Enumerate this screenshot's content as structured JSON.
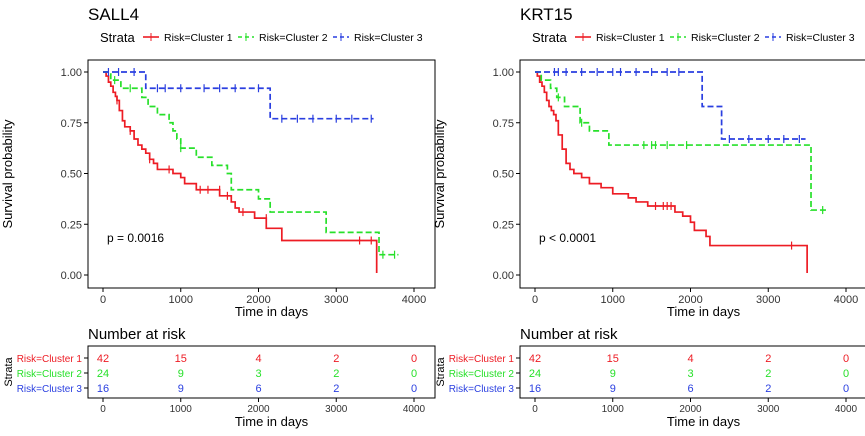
{
  "colors": {
    "cluster1": "#ed1c24",
    "cluster2": "#27e02a",
    "cluster3": "#2a3fe0"
  },
  "chart_data": [
    {
      "type": "line",
      "subtype": "kaplan-meier",
      "title": "SALL4",
      "legend_title": "Strata",
      "legend_entries": [
        "Risk=Cluster 1",
        "Risk=Cluster 2",
        "Risk=Cluster 3"
      ],
      "xlabel": "Time in days",
      "ylabel": "Survival probability",
      "xlim": [
        0,
        4000
      ],
      "ylim": [
        0,
        1
      ],
      "x_ticks": [
        0,
        1000,
        2000,
        3000,
        4000
      ],
      "x_tick_labels": [
        "0",
        "1000",
        "2000",
        "3000",
        "4000"
      ],
      "y_ticks": [
        0,
        0.25,
        0.5,
        0.75,
        1
      ],
      "y_tick_labels": [
        "0.00",
        "0.25",
        "0.50",
        "0.75",
        "1.00"
      ],
      "pvalue": "p = 0.0016",
      "series": [
        {
          "name": "Risk=Cluster 1",
          "color_key": "cluster1",
          "dash": "solid",
          "steps": [
            [
              0,
              1
            ],
            [
              40,
              0.98
            ],
            [
              70,
              0.95
            ],
            [
              100,
              0.93
            ],
            [
              130,
              0.9
            ],
            [
              160,
              0.88
            ],
            [
              180,
              0.86
            ],
            [
              210,
              0.81
            ],
            [
              250,
              0.76
            ],
            [
              280,
              0.73
            ],
            [
              350,
              0.71
            ],
            [
              400,
              0.67
            ],
            [
              450,
              0.64
            ],
            [
              500,
              0.62
            ],
            [
              550,
              0.6
            ],
            [
              600,
              0.57
            ],
            [
              650,
              0.55
            ],
            [
              700,
              0.52
            ],
            [
              900,
              0.5
            ],
            [
              1000,
              0.48
            ],
            [
              1050,
              0.45
            ],
            [
              1200,
              0.42
            ],
            [
              1500,
              0.39
            ],
            [
              1650,
              0.36
            ],
            [
              1700,
              0.33
            ],
            [
              1750,
              0.31
            ],
            [
              1950,
              0.28
            ],
            [
              2100,
              0.23
            ],
            [
              2300,
              0.17
            ],
            [
              3520,
              0.01
            ]
          ],
          "end": 3520,
          "censors": [
            [
              180,
              0.86
            ],
            [
              350,
              0.71
            ],
            [
              600,
              0.57
            ],
            [
              850,
              0.52
            ],
            [
              1250,
              0.42
            ],
            [
              1350,
              0.42
            ],
            [
              1500,
              0.42
            ],
            [
              1600,
              0.39
            ],
            [
              1800,
              0.31
            ],
            [
              2100,
              0.28
            ],
            [
              3300,
              0.17
            ],
            [
              3450,
              0.17
            ]
          ]
        },
        {
          "name": "Risk=Cluster 2",
          "color_key": "cluster2",
          "dash": "dashed",
          "steps": [
            [
              0,
              1
            ],
            [
              100,
              0.96
            ],
            [
              230,
              0.92
            ],
            [
              500,
              0.875
            ],
            [
              580,
              0.83
            ],
            [
              700,
              0.79
            ],
            [
              850,
              0.75
            ],
            [
              900,
              0.71
            ],
            [
              950,
              0.67
            ],
            [
              1000,
              0.625
            ],
            [
              1200,
              0.58
            ],
            [
              1400,
              0.54
            ],
            [
              1600,
              0.5
            ],
            [
              1650,
              0.42
            ],
            [
              2000,
              0.375
            ],
            [
              2150,
              0.31
            ],
            [
              2870,
              0.21
            ],
            [
              3550,
              0.1
            ]
          ],
          "end": 3800,
          "censors": [
            [
              150,
              0.96
            ],
            [
              350,
              0.92
            ],
            [
              1000,
              0.625
            ],
            [
              3600,
              0.1
            ],
            [
              3750,
              0.1
            ]
          ]
        },
        {
          "name": "Risk=Cluster 3",
          "color_key": "cluster3",
          "dash": "dashed",
          "steps": [
            [
              0,
              1
            ],
            [
              550,
              0.92
            ],
            [
              2150,
              0.77
            ]
          ],
          "end": 3480,
          "censors": [
            [
              70,
              1
            ],
            [
              200,
              1
            ],
            [
              400,
              1
            ],
            [
              700,
              0.92
            ],
            [
              800,
              0.92
            ],
            [
              1000,
              0.92
            ],
            [
              1300,
              0.92
            ],
            [
              1500,
              0.92
            ],
            [
              1700,
              0.92
            ],
            [
              2000,
              0.92
            ],
            [
              2300,
              0.77
            ],
            [
              2500,
              0.77
            ],
            [
              2700,
              0.77
            ],
            [
              3000,
              0.77
            ],
            [
              3200,
              0.77
            ],
            [
              3450,
              0.77
            ]
          ]
        }
      ],
      "risk_table": {
        "title": "Number at risk",
        "ylabel": "Strata",
        "xlabel": "Time in days",
        "x_tick_labels": [
          "0",
          "1000",
          "2000",
          "3000",
          "4000"
        ],
        "rows": [
          {
            "label": "Risk=Cluster 1",
            "color_key": "cluster1",
            "values": [
              "42",
              "15",
              "4",
              "2",
              "0"
            ]
          },
          {
            "label": "Risk=Cluster 2",
            "color_key": "cluster2",
            "values": [
              "24",
              "9",
              "3",
              "2",
              "0"
            ]
          },
          {
            "label": "Risk=Cluster 3",
            "color_key": "cluster3",
            "values": [
              "16",
              "9",
              "6",
              "2",
              "0"
            ]
          }
        ]
      }
    },
    {
      "type": "line",
      "subtype": "kaplan-meier",
      "title": "KRT15",
      "legend_title": "Strata",
      "legend_entries": [
        "Risk=Cluster 1",
        "Risk=Cluster 2",
        "Risk=Cluster 3"
      ],
      "xlabel": "Time in days",
      "ylabel": "Survival probability",
      "xlim": [
        0,
        4000
      ],
      "ylim": [
        0,
        1
      ],
      "x_ticks": [
        0,
        1000,
        2000,
        3000,
        4000
      ],
      "x_tick_labels": [
        "0",
        "1000",
        "2000",
        "3000",
        "4000"
      ],
      "y_ticks": [
        0,
        0.25,
        0.5,
        0.75,
        1
      ],
      "y_tick_labels": [
        "0.00",
        "0.25",
        "0.50",
        "0.75",
        "1.00"
      ],
      "pvalue": "p < 0.0001",
      "series": [
        {
          "name": "Risk=Cluster 1",
          "color_key": "cluster1",
          "dash": "solid",
          "steps": [
            [
              0,
              1
            ],
            [
              30,
              0.98
            ],
            [
              60,
              0.95
            ],
            [
              90,
              0.93
            ],
            [
              120,
              0.9
            ],
            [
              150,
              0.86
            ],
            [
              180,
              0.83
            ],
            [
              210,
              0.81
            ],
            [
              240,
              0.79
            ],
            [
              270,
              0.76
            ],
            [
              300,
              0.69
            ],
            [
              350,
              0.62
            ],
            [
              400,
              0.55
            ],
            [
              450,
              0.52
            ],
            [
              500,
              0.5
            ],
            [
              600,
              0.48
            ],
            [
              700,
              0.45
            ],
            [
              850,
              0.43
            ],
            [
              1000,
              0.4
            ],
            [
              1200,
              0.38
            ],
            [
              1300,
              0.36
            ],
            [
              1450,
              0.34
            ],
            [
              1800,
              0.31
            ],
            [
              1900,
              0.29
            ],
            [
              2000,
              0.26
            ],
            [
              2050,
              0.22
            ],
            [
              2200,
              0.19
            ],
            [
              2250,
              0.145
            ],
            [
              3500,
              0.01
            ]
          ],
          "end": 3500,
          "censors": [
            [
              1550,
              0.34
            ],
            [
              1650,
              0.34
            ],
            [
              1700,
              0.34
            ],
            [
              1750,
              0.34
            ],
            [
              3300,
              0.145
            ]
          ]
        },
        {
          "name": "Risk=Cluster 2",
          "color_key": "cluster2",
          "dash": "dashed",
          "steps": [
            [
              0,
              1
            ],
            [
              80,
              0.96
            ],
            [
              200,
              0.92
            ],
            [
              280,
              0.875
            ],
            [
              380,
              0.83
            ],
            [
              580,
              0.75
            ],
            [
              700,
              0.71
            ],
            [
              950,
              0.64
            ],
            [
              1950,
              0.64
            ],
            [
              3550,
              0.32
            ]
          ],
          "end": 3750,
          "censors": [
            [
              300,
              0.875
            ],
            [
              600,
              0.75
            ],
            [
              1400,
              0.64
            ],
            [
              1500,
              0.64
            ],
            [
              1550,
              0.64
            ],
            [
              1700,
              0.64
            ],
            [
              1950,
              0.64
            ],
            [
              3700,
              0.32
            ]
          ]
        },
        {
          "name": "Risk=Cluster 3",
          "color_key": "cluster3",
          "dash": "dashed",
          "steps": [
            [
              0,
              1
            ],
            [
              2150,
              0.83
            ],
            [
              2400,
              0.67
            ]
          ],
          "end": 3480,
          "censors": [
            [
              250,
              1
            ],
            [
              300,
              1
            ],
            [
              400,
              1
            ],
            [
              600,
              1
            ],
            [
              800,
              1
            ],
            [
              1000,
              1
            ],
            [
              1100,
              1
            ],
            [
              1300,
              1
            ],
            [
              1500,
              1
            ],
            [
              1700,
              1
            ],
            [
              1850,
              1
            ],
            [
              2500,
              0.67
            ],
            [
              2750,
              0.67
            ],
            [
              3000,
              0.67
            ],
            [
              3200,
              0.67
            ],
            [
              3400,
              0.67
            ]
          ]
        }
      ],
      "risk_table": {
        "title": "Number at risk",
        "ylabel": "Strata",
        "xlabel": "Time in days",
        "x_tick_labels": [
          "0",
          "1000",
          "2000",
          "3000",
          "4000"
        ],
        "rows": [
          {
            "label": "Risk=Cluster 1",
            "color_key": "cluster1",
            "values": [
              "42",
              "15",
              "4",
              "2",
              "0"
            ]
          },
          {
            "label": "Risk=Cluster 2",
            "color_key": "cluster2",
            "values": [
              "24",
              "9",
              "3",
              "2",
              "0"
            ]
          },
          {
            "label": "Risk=Cluster 3",
            "color_key": "cluster3",
            "values": [
              "16",
              "9",
              "6",
              "2",
              "0"
            ]
          }
        ]
      }
    }
  ]
}
